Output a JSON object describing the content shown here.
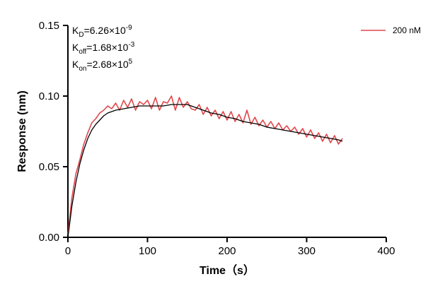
{
  "chart_data": {
    "type": "line",
    "xlabel": "Time（s）",
    "ylabel": "Response (nm)",
    "xlim": [
      0,
      400
    ],
    "ylim": [
      0,
      0.15
    ],
    "xticks": [
      0,
      100,
      200,
      300,
      400
    ],
    "yticks": [
      0.0,
      0.05,
      0.1,
      0.15
    ],
    "xtick_labels": [
      "0",
      "100",
      "200",
      "300",
      "400"
    ],
    "ytick_labels": [
      "0.00",
      "0.05",
      "0.10",
      "0.15"
    ],
    "grid": false,
    "legend_position": "top-right",
    "annotations": [
      {
        "main": "K",
        "sub": "D",
        "rest": "=6.26×10",
        "sup": "-9"
      },
      {
        "main": "K",
        "sub": "off",
        "rest": "=1.68×10",
        "sup": "-3"
      },
      {
        "main": "K",
        "sub": "on",
        "rest": "=2.68×10",
        "sup": "5"
      }
    ],
    "series": [
      {
        "name": "200 nM",
        "color": "#e0474c",
        "x": [
          0,
          5,
          10,
          15,
          20,
          25,
          30,
          35,
          40,
          45,
          50,
          55,
          60,
          65,
          70,
          75,
          80,
          85,
          90,
          95,
          100,
          105,
          110,
          115,
          120,
          125,
          130,
          135,
          140,
          145,
          150,
          155,
          160,
          165,
          170,
          175,
          180,
          185,
          190,
          195,
          200,
          205,
          210,
          215,
          220,
          225,
          230,
          235,
          240,
          245,
          250,
          255,
          260,
          265,
          270,
          275,
          280,
          285,
          290,
          295,
          300,
          305,
          310,
          315,
          320,
          325,
          330,
          335,
          340,
          345
        ],
        "y": [
          0.002,
          0.028,
          0.045,
          0.055,
          0.066,
          0.074,
          0.081,
          0.084,
          0.088,
          0.09,
          0.093,
          0.091,
          0.095,
          0.09,
          0.097,
          0.092,
          0.098,
          0.09,
          0.096,
          0.094,
          0.097,
          0.091,
          0.099,
          0.09,
          0.096,
          0.095,
          0.1,
          0.09,
          0.099,
          0.092,
          0.096,
          0.091,
          0.09,
          0.094,
          0.087,
          0.092,
          0.086,
          0.09,
          0.084,
          0.089,
          0.083,
          0.089,
          0.082,
          0.087,
          0.081,
          0.09,
          0.08,
          0.085,
          0.079,
          0.083,
          0.078,
          0.082,
          0.077,
          0.081,
          0.076,
          0.079,
          0.075,
          0.078,
          0.073,
          0.077,
          0.071,
          0.076,
          0.07,
          0.074,
          0.068,
          0.073,
          0.067,
          0.072,
          0.066,
          0.07
        ]
      },
      {
        "name": "",
        "color": "#000000",
        "x": [
          0,
          5,
          10,
          15,
          20,
          25,
          30,
          35,
          40,
          45,
          50,
          60,
          70,
          80,
          90,
          100,
          110,
          120,
          130,
          140,
          150,
          160,
          170,
          180,
          190,
          200,
          210,
          220,
          230,
          240,
          250,
          260,
          270,
          280,
          290,
          300,
          310,
          320,
          330,
          340,
          345
        ],
        "y": [
          0.0,
          0.022,
          0.039,
          0.052,
          0.062,
          0.07,
          0.076,
          0.08,
          0.083,
          0.086,
          0.088,
          0.09,
          0.091,
          0.092,
          0.093,
          0.093,
          0.093,
          0.093,
          0.094,
          0.094,
          0.094,
          0.092,
          0.09,
          0.088,
          0.087,
          0.085,
          0.084,
          0.082,
          0.081,
          0.08,
          0.078,
          0.077,
          0.076,
          0.075,
          0.074,
          0.073,
          0.072,
          0.071,
          0.07,
          0.069,
          0.068
        ]
      }
    ]
  }
}
